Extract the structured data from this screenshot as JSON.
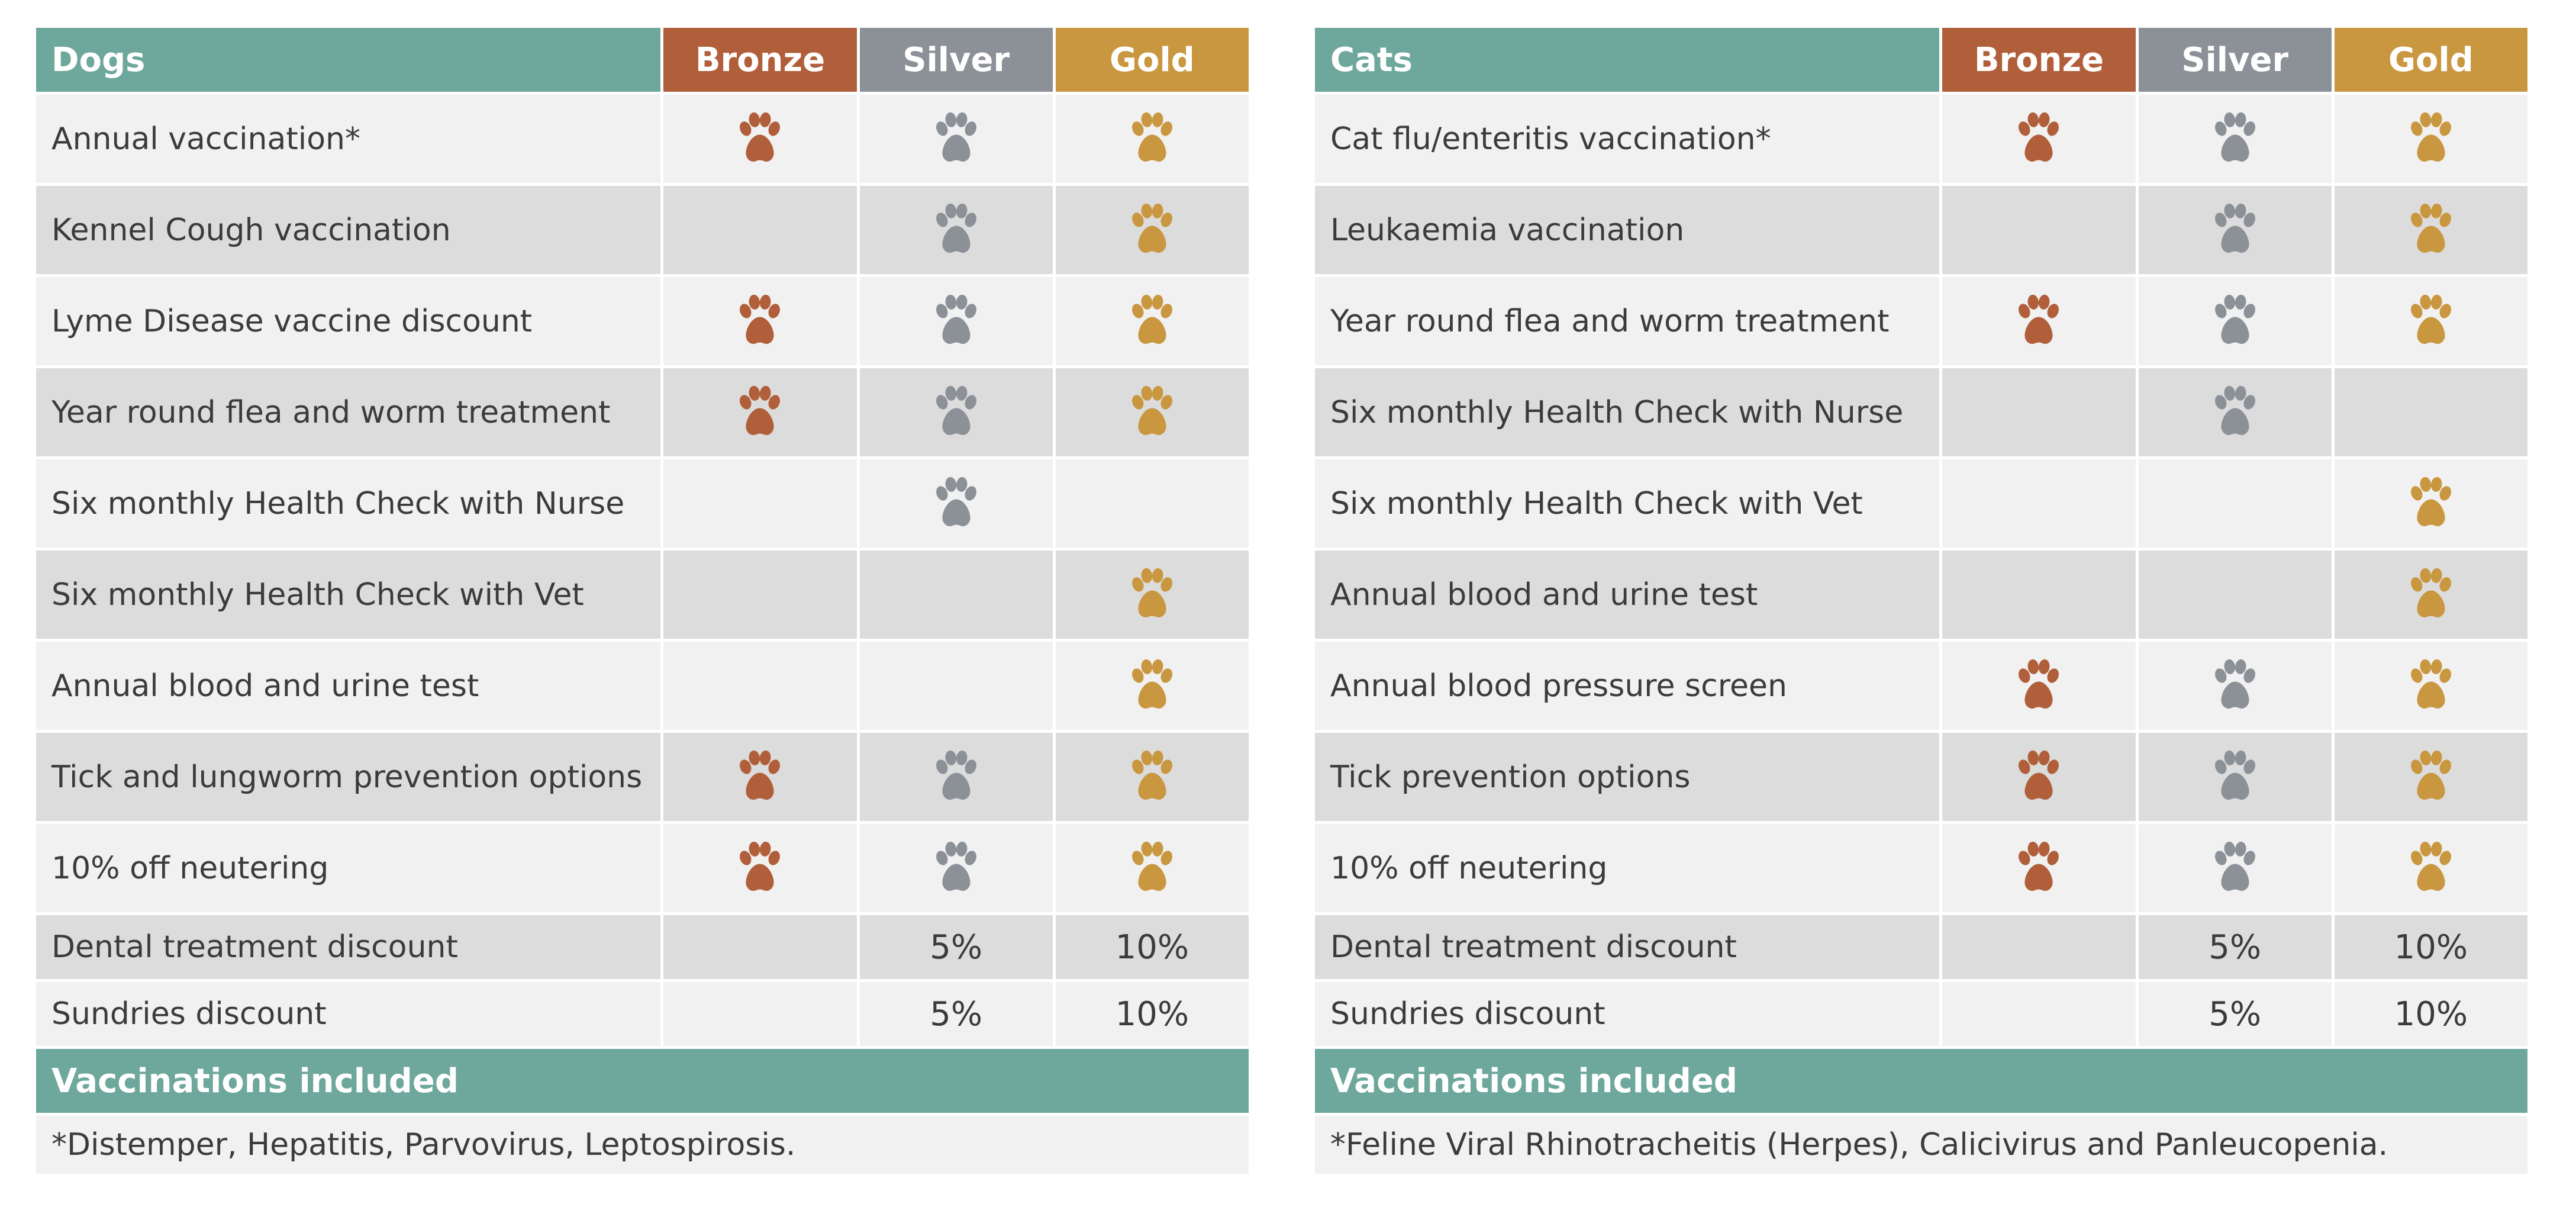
{
  "tiers": {
    "bronze": "Bronze",
    "silver": "Silver",
    "gold": "Gold"
  },
  "colors": {
    "teal": "#6ea79b",
    "bronze": "#b05f3a",
    "silver": "#8c9198",
    "gold": "#c9973f"
  },
  "dogs": {
    "title": "Dogs",
    "rows": [
      {
        "label": "Annual vaccination*",
        "bronze": true,
        "silver": true,
        "gold": true
      },
      {
        "label": "Kennel Cough vaccination",
        "bronze": false,
        "silver": true,
        "gold": true
      },
      {
        "label": "Lyme Disease vaccine discount",
        "bronze": true,
        "silver": true,
        "gold": true
      },
      {
        "label": "Year round flea and worm treatment",
        "bronze": true,
        "silver": true,
        "gold": true
      },
      {
        "label": "Six monthly Health Check with Nurse",
        "bronze": false,
        "silver": true,
        "gold": false
      },
      {
        "label": "Six monthly Health Check with Vet",
        "bronze": false,
        "silver": false,
        "gold": true
      },
      {
        "label": "Annual blood and urine test",
        "bronze": false,
        "silver": false,
        "gold": true
      },
      {
        "label": "Tick and lungworm prevention options",
        "bronze": true,
        "silver": true,
        "gold": true
      },
      {
        "label": "10% off neutering",
        "bronze": true,
        "silver": true,
        "gold": true
      },
      {
        "label": "Dental treatment discount",
        "bronze": "",
        "silver": "5%",
        "gold": "10%"
      },
      {
        "label": "Sundries discount",
        "bronze": "",
        "silver": "5%",
        "gold": "10%"
      }
    ],
    "vacc_title": "Vaccinations included",
    "vacc_note": "*Distemper, Hepatitis, Parvovirus, Leptospirosis."
  },
  "cats": {
    "title": "Cats",
    "rows": [
      {
        "label": "Cat flu/enteritis vaccination*",
        "bronze": true,
        "silver": true,
        "gold": true
      },
      {
        "label": "Leukaemia vaccination",
        "bronze": false,
        "silver": true,
        "gold": true
      },
      {
        "label": "Year round flea and worm treatment",
        "bronze": true,
        "silver": true,
        "gold": true
      },
      {
        "label": "Six monthly Health Check with Nurse",
        "bronze": false,
        "silver": true,
        "gold": false
      },
      {
        "label": "Six monthly Health Check with Vet",
        "bronze": false,
        "silver": false,
        "gold": true
      },
      {
        "label": "Annual blood and urine test",
        "bronze": false,
        "silver": false,
        "gold": true
      },
      {
        "label": "Annual blood pressure screen",
        "bronze": true,
        "silver": true,
        "gold": true
      },
      {
        "label": "Tick prevention options",
        "bronze": true,
        "silver": true,
        "gold": true
      },
      {
        "label": "10% off neutering",
        "bronze": true,
        "silver": true,
        "gold": true
      },
      {
        "label": "Dental treatment discount",
        "bronze": "",
        "silver": "5%",
        "gold": "10%"
      },
      {
        "label": "Sundries discount",
        "bronze": "",
        "silver": "5%",
        "gold": "10%"
      }
    ],
    "vacc_title": "Vaccinations included",
    "vacc_note": "*Feline Viral Rhinotracheitis (Herpes), Calicivirus and Panleucopenia."
  }
}
